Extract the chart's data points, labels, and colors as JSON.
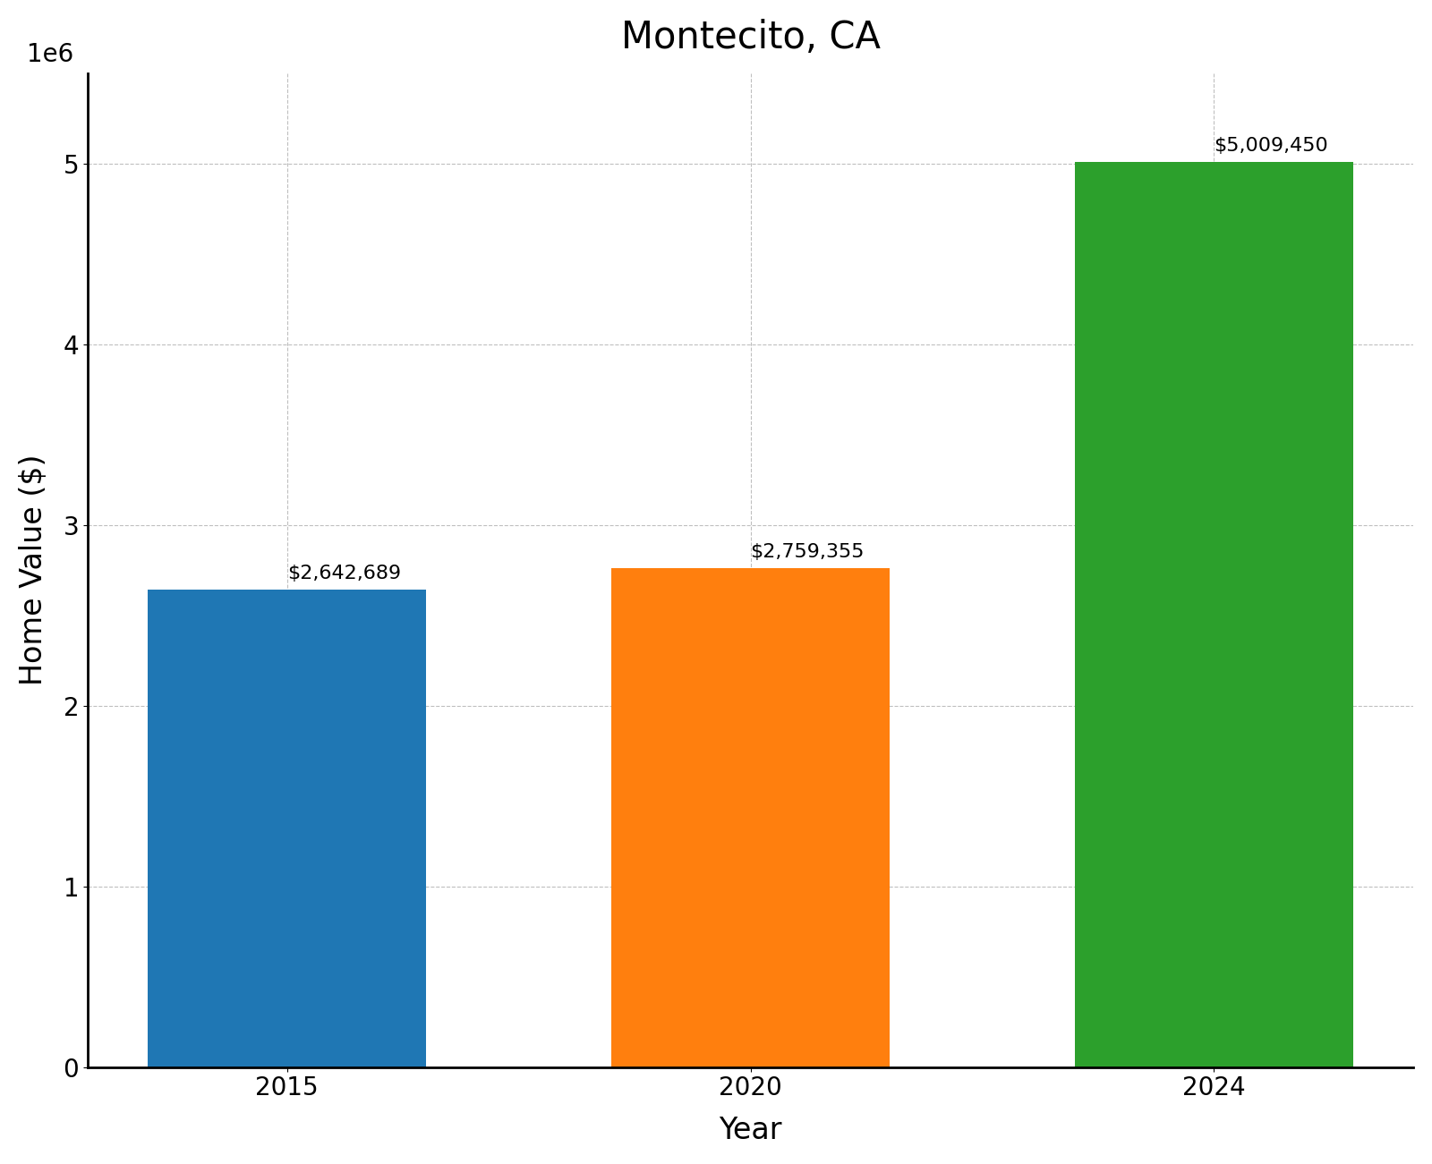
{
  "title": "Montecito, CA",
  "xlabel": "Year",
  "ylabel": "Home Value ($)",
  "categories": [
    "2015",
    "2020",
    "2024"
  ],
  "values": [
    2642689,
    2759355,
    5009450
  ],
  "bar_colors": [
    "#1f77b4",
    "#ff7f0e",
    "#2ca02c"
  ],
  "labels": [
    "$2,642,689",
    "$2,759,355",
    "$5,009,450"
  ],
  "ylim": [
    0,
    5500000
  ],
  "yticks": [
    0,
    1000000,
    2000000,
    3000000,
    4000000,
    5000000
  ],
  "title_fontsize": 30,
  "label_fontsize": 24,
  "tick_fontsize": 20,
  "bar_label_fontsize": 16,
  "background_color": "#ffffff",
  "grid_color": "#b0b0b0",
  "grid_linestyle": "--",
  "grid_alpha": 0.8
}
